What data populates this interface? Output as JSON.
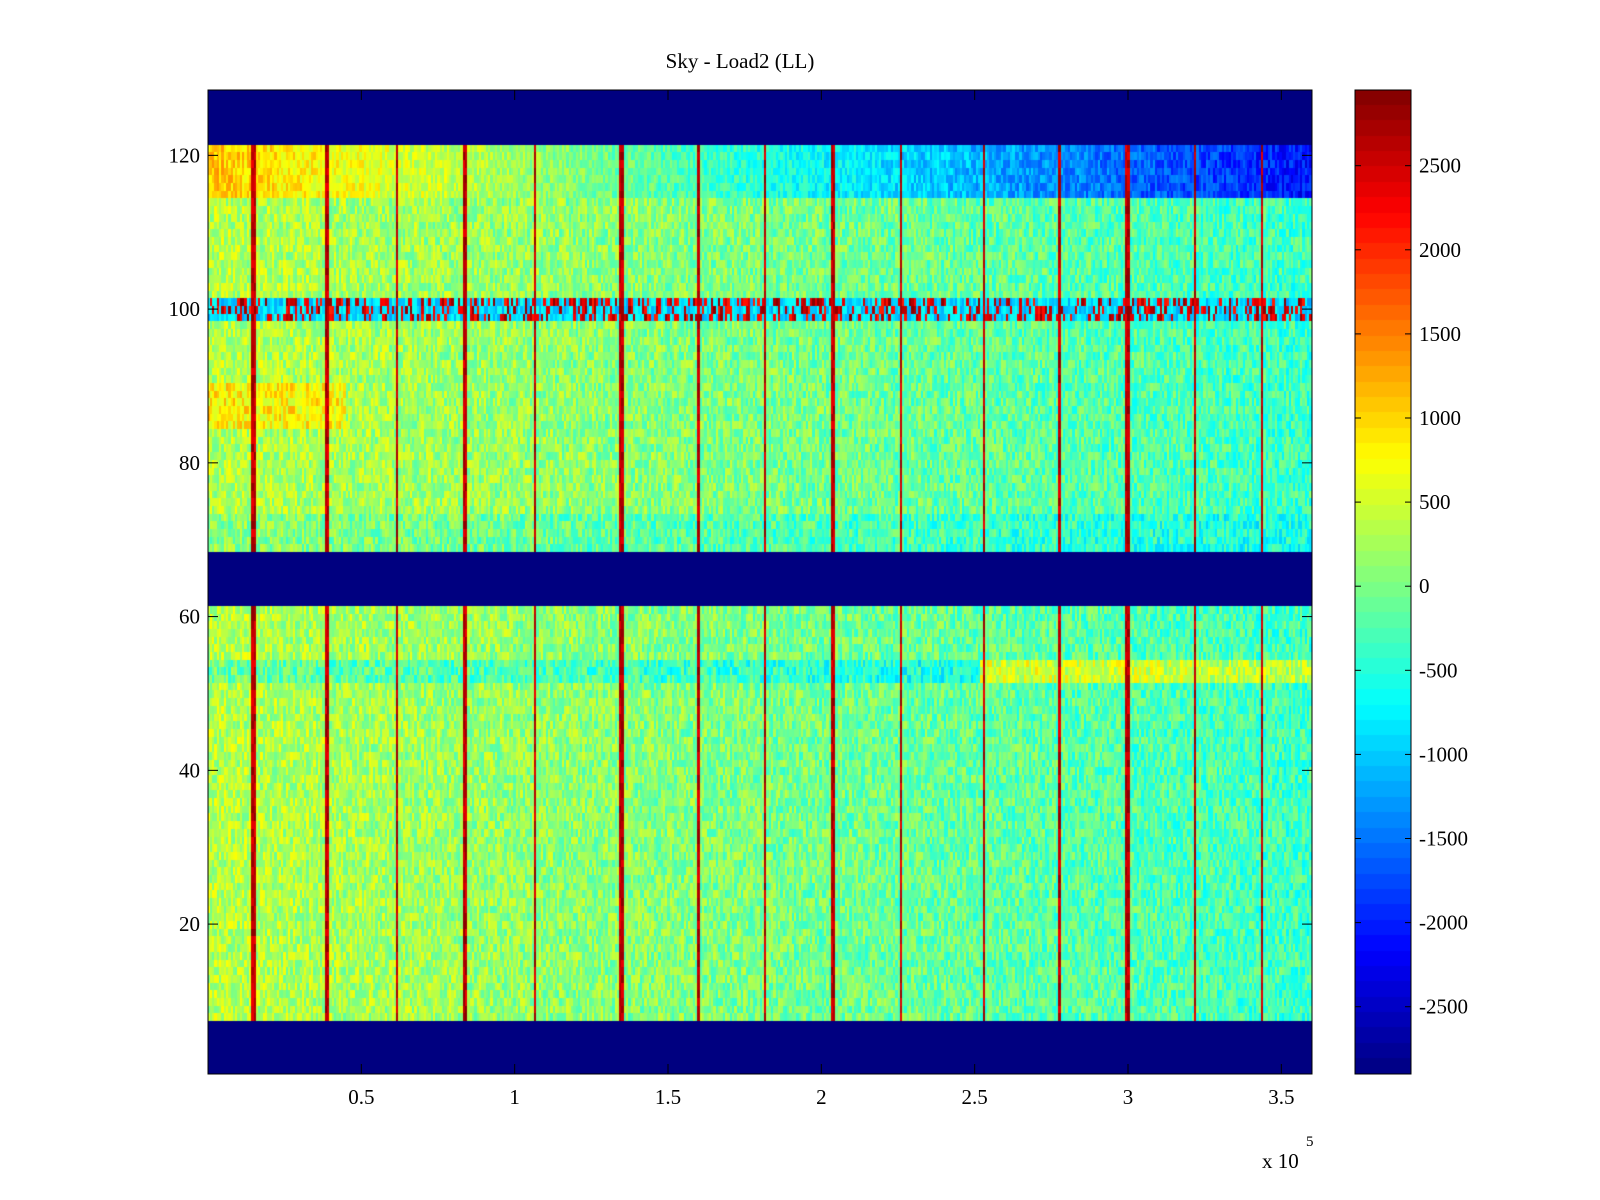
{
  "chart_data": {
    "type": "heatmap",
    "title": "Sky - Load2 (LL)",
    "xlabel": "",
    "ylabel": "",
    "x_exponent_label": "x 10",
    "x_exponent": "5",
    "xlim": [
      0,
      3.6
    ],
    "ylim": [
      0.5,
      128.5
    ],
    "x_ticks": [
      0.5,
      1,
      1.5,
      2,
      2.5,
      3,
      3.5
    ],
    "x_tick_labels": [
      "0.5",
      "1",
      "1.5",
      "2",
      "2.5",
      "3",
      "3.5"
    ],
    "y_ticks": [
      20,
      40,
      60,
      80,
      100,
      120
    ],
    "y_tick_labels": [
      "20",
      "40",
      "60",
      "80",
      "100",
      "120"
    ],
    "colorbar": {
      "colormap": "jet",
      "clim": [
        -2900,
        2950
      ],
      "ticks": [
        2500,
        2000,
        1500,
        1000,
        500,
        0,
        -500,
        -1000,
        -1500,
        -2000,
        -2500
      ],
      "tick_labels": [
        "2500",
        "2000",
        "1500",
        "1000",
        "500",
        "0",
        "-500",
        "-1000",
        "-1500",
        "-2000",
        "-2500"
      ]
    },
    "masked_rows": [
      [
        1,
        7
      ],
      [
        62,
        68
      ],
      [
        122,
        128
      ]
    ],
    "stripe_x": [
      0.15,
      0.39,
      0.62,
      0.84,
      1.07,
      1.35,
      1.6,
      1.82,
      2.04,
      2.26,
      2.53,
      2.78,
      3.0,
      3.22,
      3.44
    ]
  }
}
